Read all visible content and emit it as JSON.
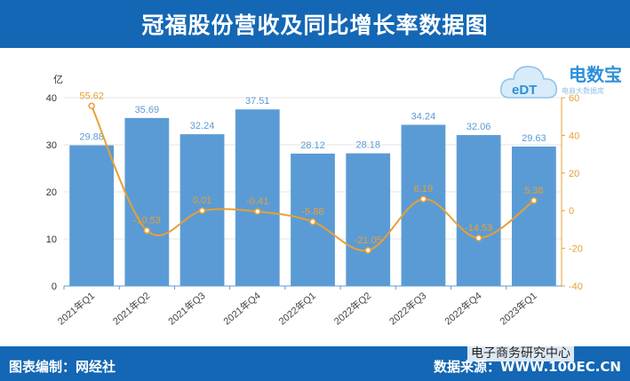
{
  "header": {
    "title": "冠福股份营收及同比增长率数据图"
  },
  "footer": {
    "left": "图表编制：网经社",
    "right": "数据来源：WWW.100EC.CN",
    "watermark": "电子商务研究中心"
  },
  "logo": {
    "name": "电数宝",
    "subtitle": "电商大数据库",
    "mark": "eDT"
  },
  "colors": {
    "bar": "#5b9bd5",
    "line": "#e8a033",
    "header": "#1467b4",
    "bar_label": "#5b9bd5",
    "line_label": "#e8a033"
  },
  "chart_data": {
    "type": "bar",
    "categories": [
      "2021年Q1",
      "2021年Q2",
      "2021年Q3",
      "2021年Q4",
      "2022年Q1",
      "2022年Q2",
      "2022年Q3",
      "2022年Q4",
      "2023年Q1"
    ],
    "ylabel": "亿",
    "ylim": [
      0,
      40
    ],
    "yticks": [
      0,
      10,
      20,
      30,
      40
    ],
    "y2lim": [
      -40,
      60
    ],
    "y2ticks": [
      -40,
      -20,
      0,
      20,
      40,
      60
    ],
    "grid": true,
    "series": [
      {
        "kind": "bar",
        "axis": "left",
        "values": [
          29.88,
          35.69,
          32.24,
          37.51,
          28.12,
          28.18,
          34.24,
          32.06,
          29.63
        ],
        "labels": [
          "29.88",
          "35.69",
          "32.24",
          "37.51",
          "28.12",
          "28.18",
          "34.24",
          "32.06",
          "29.63"
        ]
      },
      {
        "kind": "line",
        "axis": "right",
        "values": [
          55.62,
          -10.53,
          0.01,
          -0.41,
          -5.88,
          -21.05,
          6.19,
          -14.53,
          5.38
        ],
        "labels": [
          "55.62",
          "-10.53",
          "0.01",
          "-0.41",
          "-5.88",
          "-21.05",
          "6.19",
          "-14.53",
          "5.38"
        ]
      }
    ]
  }
}
